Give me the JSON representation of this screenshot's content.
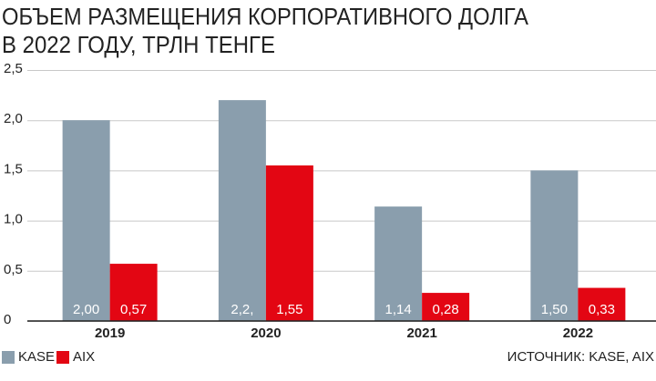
{
  "chart_data": {
    "type": "bar",
    "title": [
      "ОБЪЕМ РАЗМЕЩЕНИЯ КОРПОРАТИВНОГО ДОЛГА",
      "В 2022 ГОДУ, ТРЛН ТЕНГЕ"
    ],
    "categories": [
      "2019",
      "2020",
      "2021",
      "2022"
    ],
    "series": [
      {
        "name": "KASE",
        "color": "#8a9ead",
        "values": [
          2.0,
          2.2,
          1.14,
          1.5
        ],
        "value_labels": [
          "2,00",
          "2,2,",
          "1,14",
          "1,50"
        ]
      },
      {
        "name": "AIX",
        "color": "#e30613",
        "values": [
          0.57,
          1.55,
          0.28,
          0.33
        ],
        "value_labels": [
          "0,57",
          "1,55",
          "0,28",
          "0,33"
        ]
      }
    ],
    "ylim": [
      0,
      2.5
    ],
    "yticks": [
      0,
      {
        "value": 0.5,
        "label": "0,5"
      },
      {
        "value": 1.0,
        "label": "1,0"
      },
      {
        "value": 1.5,
        "label": "1,5"
      },
      {
        "value": 2.0,
        "label": "2,0"
      },
      {
        "value": 2.5,
        "label": "2,5"
      }
    ],
    "grid": true,
    "legend": "bottom-left",
    "source": "ИСТОЧНИК: KASE, AIX"
  }
}
